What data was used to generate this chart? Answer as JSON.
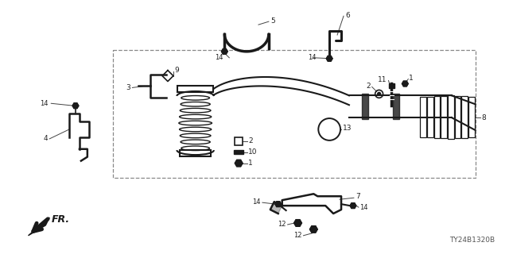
{
  "bg_color": "#ffffff",
  "diagram_id": "TY24B1320B",
  "fig_width": 6.4,
  "fig_height": 3.2,
  "dpi": 100,
  "label_color": "#222222",
  "line_color": "#444444",
  "part_color": "#1a1a1a",
  "box_color": "#888888"
}
